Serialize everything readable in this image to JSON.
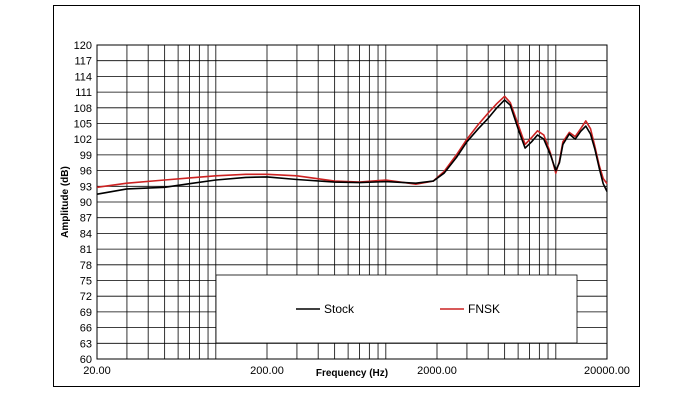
{
  "chart_data": {
    "type": "line",
    "xlabel": "Frequency (Hz)",
    "ylabel": "Amplitude (dB)",
    "xscale": "log",
    "xlim": [
      20,
      20000
    ],
    "ylim": [
      60,
      120
    ],
    "x_tick_labels": [
      "20.00",
      "200.00",
      "2000.00",
      "20000.00"
    ],
    "x_tick_values": [
      20,
      200,
      2000,
      20000
    ],
    "y_ticks": [
      60,
      63,
      66,
      69,
      72,
      75,
      78,
      81,
      84,
      87,
      90,
      93,
      96,
      99,
      102,
      105,
      108,
      111,
      114,
      117,
      120
    ],
    "grid": true,
    "legend": {
      "position": "bottom-center",
      "entries": [
        "Stock",
        "FNSK"
      ]
    },
    "series": [
      {
        "name": "Stock",
        "color": "#000000",
        "points": [
          [
            20,
            91.5
          ],
          [
            30,
            92.5
          ],
          [
            50,
            92.8
          ],
          [
            70,
            93.5
          ],
          [
            100,
            94.2
          ],
          [
            150,
            94.7
          ],
          [
            200,
            94.8
          ],
          [
            300,
            94.3
          ],
          [
            500,
            93.8
          ],
          [
            700,
            93.7
          ],
          [
            1000,
            93.9
          ],
          [
            1500,
            93.6
          ],
          [
            1900,
            94.0
          ],
          [
            2200,
            95.5
          ],
          [
            2600,
            98.5
          ],
          [
            3000,
            101.5
          ],
          [
            3500,
            104.0
          ],
          [
            4000,
            106.0
          ],
          [
            4500,
            108.0
          ],
          [
            5000,
            109.5
          ],
          [
            5400,
            108.5
          ],
          [
            6000,
            104.0
          ],
          [
            6600,
            100.3
          ],
          [
            7200,
            101.5
          ],
          [
            7800,
            102.8
          ],
          [
            8500,
            102.0
          ],
          [
            9300,
            99.0
          ],
          [
            10000,
            96.0
          ],
          [
            10500,
            97.5
          ],
          [
            11000,
            101.0
          ],
          [
            12000,
            103.0
          ],
          [
            13000,
            102.0
          ],
          [
            14000,
            103.5
          ],
          [
            15000,
            104.5
          ],
          [
            16000,
            103.0
          ],
          [
            17000,
            100.0
          ],
          [
            18000,
            96.5
          ],
          [
            19000,
            93.5
          ],
          [
            20000,
            92.0
          ]
        ]
      },
      {
        "name": "FNSK",
        "color": "#cc2222",
        "points": [
          [
            20,
            92.8
          ],
          [
            30,
            93.6
          ],
          [
            50,
            94.2
          ],
          [
            70,
            94.6
          ],
          [
            100,
            95.0
          ],
          [
            150,
            95.3
          ],
          [
            200,
            95.3
          ],
          [
            300,
            95.0
          ],
          [
            500,
            94.0
          ],
          [
            700,
            93.8
          ],
          [
            1000,
            94.2
          ],
          [
            1500,
            93.4
          ],
          [
            1900,
            94.0
          ],
          [
            2200,
            95.8
          ],
          [
            2600,
            99.0
          ],
          [
            3000,
            102.0
          ],
          [
            3500,
            104.8
          ],
          [
            4000,
            107.0
          ],
          [
            4500,
            108.8
          ],
          [
            5000,
            110.2
          ],
          [
            5400,
            109.0
          ],
          [
            6000,
            104.8
          ],
          [
            6600,
            101.0
          ],
          [
            7200,
            102.3
          ],
          [
            7800,
            103.6
          ],
          [
            8500,
            102.8
          ],
          [
            9300,
            99.3
          ],
          [
            10000,
            95.5
          ],
          [
            10500,
            97.8
          ],
          [
            11000,
            101.5
          ],
          [
            12000,
            103.3
          ],
          [
            13000,
            102.5
          ],
          [
            14000,
            104.0
          ],
          [
            15000,
            105.5
          ],
          [
            16000,
            104.0
          ],
          [
            17000,
            100.5
          ],
          [
            18000,
            97.0
          ],
          [
            19000,
            94.5
          ],
          [
            20000,
            93.5
          ]
        ]
      }
    ]
  }
}
